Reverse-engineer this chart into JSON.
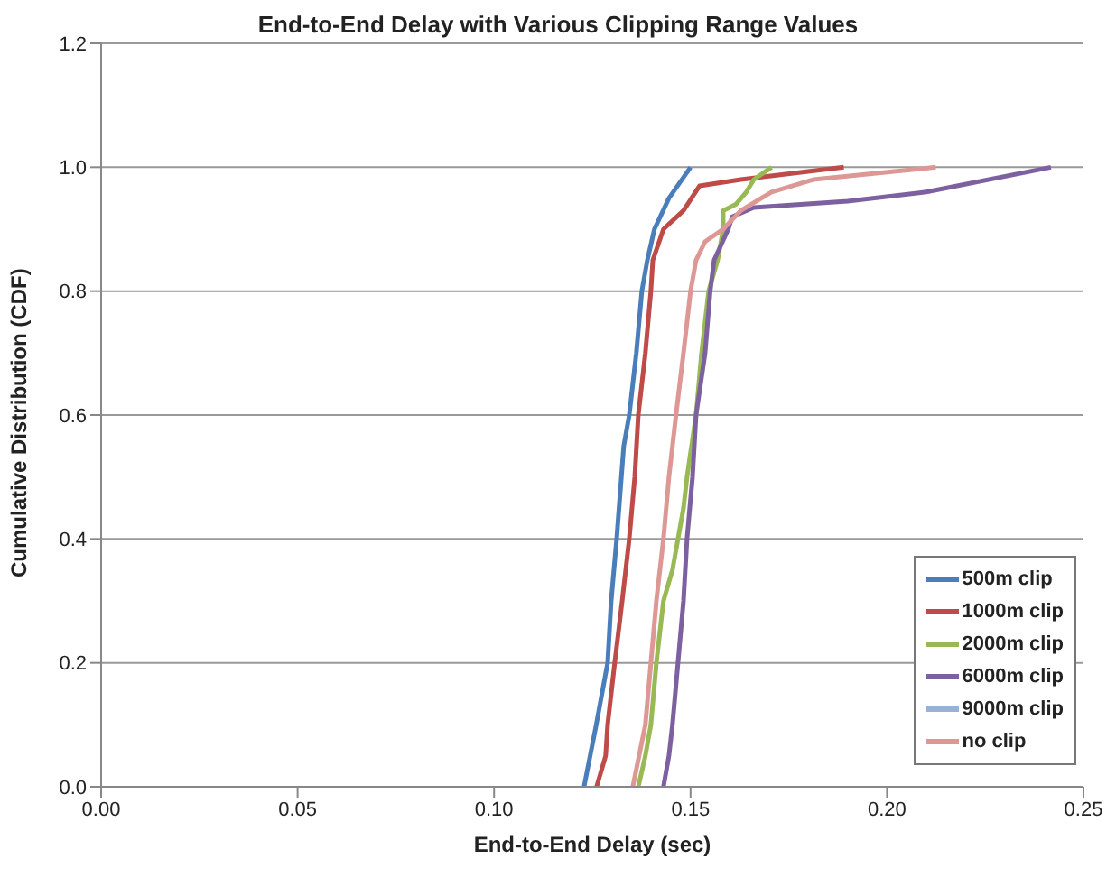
{
  "chart_data": {
    "type": "line",
    "title": "End-to-End Delay with Various Clipping Range Values",
    "xlabel": "End-to-End Delay (sec)",
    "ylabel": "Cumulative Distribution (CDF)",
    "xlim": [
      0,
      0.25
    ],
    "xticks": [
      {
        "value": 0,
        "label": "0.00"
      },
      {
        "value": 0.05,
        "label": "0.05"
      },
      {
        "value": 0.1,
        "label": "0.10"
      },
      {
        "value": 0.15,
        "label": "0.15"
      },
      {
        "value": 0.2,
        "label": "0.20"
      },
      {
        "value": 0.25,
        "label": "0.25"
      }
    ],
    "ylim": [
      0,
      1.2
    ],
    "yticks": [
      {
        "value": 0,
        "label": "0.0"
      },
      {
        "value": 0.2,
        "label": "0.2"
      },
      {
        "value": 0.4,
        "label": "0.4"
      },
      {
        "value": 0.6,
        "label": "0.6"
      },
      {
        "value": 0.8,
        "label": "0.8"
      },
      {
        "value": 1,
        "label": "1.0"
      },
      {
        "value": 1.2,
        "label": "1.2"
      }
    ],
    "grid": "y",
    "legend": "bottom right",
    "marker": "none",
    "line_style": "solid",
    "series": [
      {
        "name": "500m clip",
        "color": "#4a7ebb",
        "x": [
          0.1229,
          0.126,
          0.1289,
          0.1298,
          0.1312,
          0.133,
          0.1344,
          0.1362,
          0.1376,
          0.139,
          0.1408,
          0.1445,
          0.15
        ],
        "values": [
          0,
          0.1,
          0.2,
          0.3,
          0.4,
          0.55,
          0.6,
          0.7,
          0.8,
          0.85,
          0.9,
          0.95,
          1.0
        ]
      },
      {
        "name": "1000m clip",
        "color": "#be4b48",
        "x": [
          0.1261,
          0.1284,
          0.1289,
          0.1307,
          0.1326,
          0.1344,
          0.1358,
          0.1367,
          0.1385,
          0.1399,
          0.1404,
          0.1431,
          0.1482,
          0.1523,
          0.1628,
          0.189
        ],
        "values": [
          0,
          0.05,
          0.1,
          0.2,
          0.3,
          0.4,
          0.5,
          0.6,
          0.7,
          0.8,
          0.85,
          0.9,
          0.93,
          0.97,
          0.98,
          1.0
        ]
      },
      {
        "name": "2000m clip",
        "color": "#98b954",
        "x": [
          0.1367,
          0.1385,
          0.1399,
          0.1413,
          0.1431,
          0.1454,
          0.1468,
          0.1482,
          0.1491,
          0.1514,
          0.1528,
          0.1546,
          0.1569,
          0.1583,
          0.1583,
          0.1615,
          0.1642,
          0.1661,
          0.1706
        ],
        "values": [
          0,
          0.05,
          0.1,
          0.2,
          0.3,
          0.35,
          0.4,
          0.45,
          0.5,
          0.6,
          0.7,
          0.8,
          0.85,
          0.9,
          0.93,
          0.94,
          0.96,
          0.98,
          1.0
        ]
      },
      {
        "name": "6000m clip",
        "color": "#7d60a0",
        "x": [
          0.1431,
          0.1445,
          0.1454,
          0.1468,
          0.1482,
          0.1491,
          0.1505,
          0.1514,
          0.1537,
          0.155,
          0.156,
          0.1596,
          0.1606,
          0.1661,
          0.19,
          0.21,
          0.2417
        ],
        "values": [
          0,
          0.05,
          0.1,
          0.2,
          0.3,
          0.4,
          0.5,
          0.6,
          0.7,
          0.8,
          0.85,
          0.9,
          0.92,
          0.935,
          0.945,
          0.96,
          1.0
        ]
      },
      {
        "name": "9000m clip",
        "color": "#95b3d7"
      },
      {
        "name": "no clip",
        "color": "#dd9896",
        "x": [
          0.1353,
          0.1385,
          0.1399,
          0.1413,
          0.1431,
          0.1445,
          0.1463,
          0.1482,
          0.15,
          0.1514,
          0.1537,
          0.1583,
          0.1628,
          0.1706,
          0.1812,
          0.2124
        ],
        "values": [
          0,
          0.1,
          0.2,
          0.3,
          0.4,
          0.5,
          0.6,
          0.7,
          0.8,
          0.85,
          0.88,
          0.9,
          0.93,
          0.96,
          0.98,
          1.0
        ]
      }
    ]
  }
}
